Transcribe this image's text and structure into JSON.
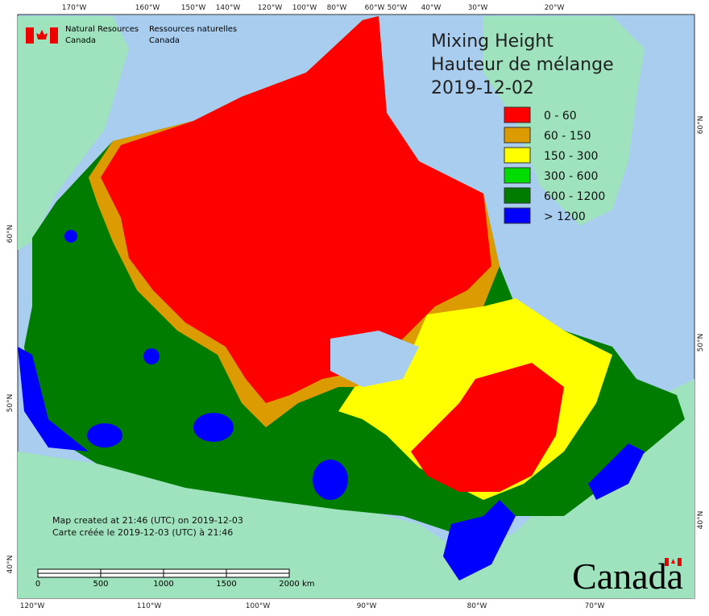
{
  "header": {
    "org_en": [
      "Natural Resources",
      "Canada"
    ],
    "org_fr": [
      "Ressources naturelles",
      "Canada"
    ]
  },
  "title": [
    "Mixing Height",
    "Hauteur de mélange",
    "2019-12-02"
  ],
  "legend": [
    {
      "label": "0 - 60",
      "color": "#ff0000"
    },
    {
      "label": "60 - 150",
      "color": "#dc9b00"
    },
    {
      "label": "150 - 300",
      "color": "#ffff00"
    },
    {
      "label": "300 - 600",
      "color": "#00dc00"
    },
    {
      "label": "600 - 1200",
      "color": "#007d00"
    },
    {
      "label": "> 1200",
      "color": "#0000ff"
    }
  ],
  "graticule": {
    "top": [
      "170°W",
      "160°W",
      "150°W",
      "140°W",
      "120°W",
      "100°W",
      "80°W",
      "60°W",
      "50°W",
      "40°W",
      "30°W",
      "20°W"
    ],
    "bottom": [
      "120°W",
      "110°W",
      "100°W",
      "90°W",
      "80°W",
      "70°W"
    ],
    "left": [
      "60°N",
      "50°N",
      "40°N"
    ],
    "right": [
      "60°N",
      "50°N",
      "40°N"
    ]
  },
  "notes": [
    "Map created at 21:46 (UTC) on 2019-12-03",
    "Carte créée le 2019-12-03 (UTC) à 21:46"
  ],
  "scale_bar": {
    "labels": [
      "0",
      "500",
      "1000",
      "1500",
      "2000"
    ],
    "unit": "km"
  },
  "wordmark": "Canada"
}
